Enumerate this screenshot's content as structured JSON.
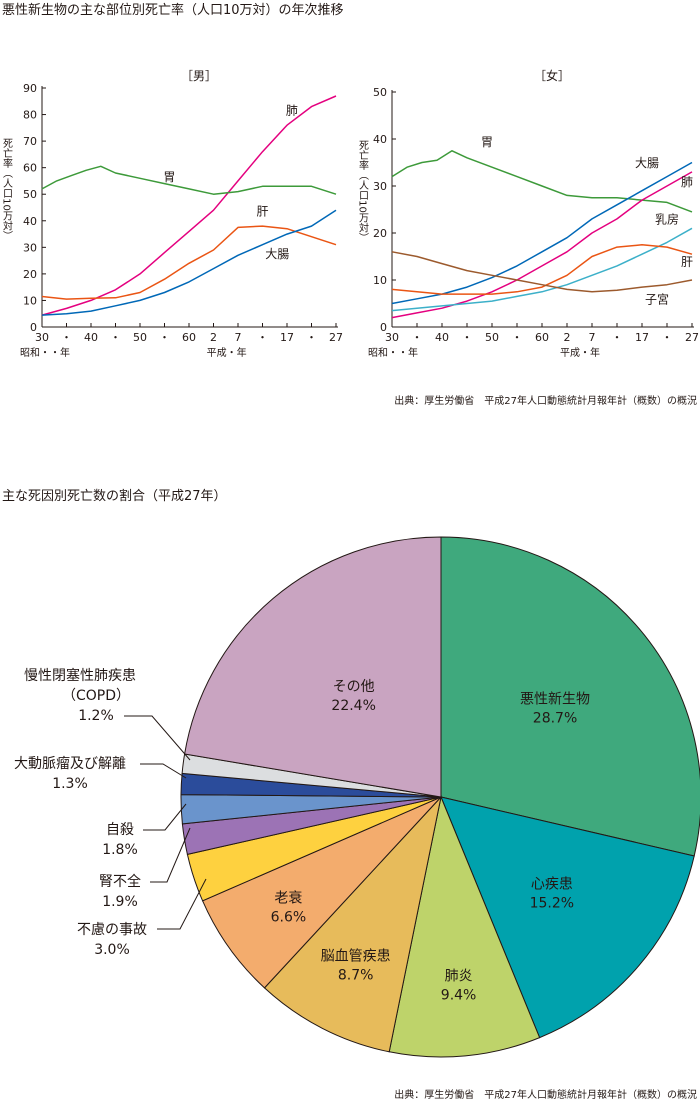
{
  "section1": {
    "title": "悪性新生物の主な部位別死亡率（人口10万対）の年次推移",
    "source": "出典：厚生労働省　平成27年人口動態統計月報年計（概数）の概況"
  },
  "section2": {
    "title": "主な死因別死亡数の割合（平成27年）",
    "source": "出典：厚生労働省　平成27年人口動態統計月報年計（概数）の概況"
  },
  "chart_data": [
    {
      "type": "line",
      "title": "［男］",
      "ylabel": "死亡率（人口10万対）",
      "ylim": [
        0,
        90
      ],
      "yticks": [
        0,
        10,
        20,
        30,
        40,
        50,
        60,
        70,
        80,
        90
      ],
      "xlim": [
        1955,
        2015
      ],
      "xticks": [
        {
          "x": 1955,
          "label": "30"
        },
        {
          "x": 1960,
          "label": "・"
        },
        {
          "x": 1965,
          "label": "40"
        },
        {
          "x": 1970,
          "label": "・"
        },
        {
          "x": 1975,
          "label": "50"
        },
        {
          "x": 1980,
          "label": "・"
        },
        {
          "x": 1985,
          "label": "60"
        },
        {
          "x": 1990,
          "label": "2"
        },
        {
          "x": 1995,
          "label": "7"
        },
        {
          "x": 2000,
          "label": "・"
        },
        {
          "x": 2005,
          "label": "17"
        },
        {
          "x": 2010,
          "label": "・"
        },
        {
          "x": 2015,
          "label": "27"
        }
      ],
      "era_labels": {
        "showa": "昭和・・年",
        "heisei": "平成・年"
      },
      "series": [
        {
          "name": "肺",
          "color": "#e4007f",
          "x": [
            1955,
            1960,
            1965,
            1970,
            1975,
            1980,
            1985,
            1990,
            1995,
            2000,
            2005,
            2010,
            2015
          ],
          "values": [
            4.5,
            7,
            10,
            14,
            20,
            28,
            36,
            44,
            55,
            66,
            76,
            83,
            87
          ]
        },
        {
          "name": "胃",
          "color": "#3d9a3a",
          "x": [
            1955,
            1958,
            1961,
            1964,
            1967,
            1970,
            1975,
            1980,
            1985,
            1990,
            1995,
            2000,
            2005,
            2010,
            2015
          ],
          "values": [
            52,
            55,
            57,
            59,
            60.5,
            58,
            56,
            54,
            52,
            50,
            51,
            53,
            53,
            53,
            50
          ]
        },
        {
          "name": "肝",
          "color": "#ea5514",
          "x": [
            1955,
            1960,
            1965,
            1970,
            1975,
            1980,
            1985,
            1990,
            1995,
            2000,
            2005,
            2010,
            2015
          ],
          "values": [
            11.5,
            10.5,
            10.8,
            11,
            13,
            18,
            24,
            29,
            37.5,
            38,
            37,
            34,
            31
          ]
        },
        {
          "name": "大腸",
          "color": "#0068b7",
          "x": [
            1955,
            1960,
            1965,
            1970,
            1975,
            1980,
            1985,
            1990,
            1995,
            2000,
            2005,
            2010,
            2015
          ],
          "values": [
            4.5,
            5,
            6,
            8,
            10,
            13,
            17,
            22,
            27,
            31,
            35,
            38,
            44
          ]
        }
      ]
    },
    {
      "type": "line",
      "title": "［女］",
      "ylabel": "死亡率（人口10万対）",
      "ylim": [
        0,
        50
      ],
      "yticks": [
        0,
        10,
        20,
        30,
        40,
        50
      ],
      "xlim": [
        1955,
        2015
      ],
      "xticks": [
        {
          "x": 1955,
          "label": "30"
        },
        {
          "x": 1960,
          "label": "・"
        },
        {
          "x": 1965,
          "label": "40"
        },
        {
          "x": 1970,
          "label": "・"
        },
        {
          "x": 1975,
          "label": "50"
        },
        {
          "x": 1980,
          "label": "・"
        },
        {
          "x": 1985,
          "label": "60"
        },
        {
          "x": 1990,
          "label": "2"
        },
        {
          "x": 1995,
          "label": "7"
        },
        {
          "x": 2000,
          "label": "・"
        },
        {
          "x": 2005,
          "label": "17"
        },
        {
          "x": 2010,
          "label": "・"
        },
        {
          "x": 2015,
          "label": "27"
        }
      ],
      "era_labels": {
        "showa": "昭和・・年",
        "heisei": "平成・年"
      },
      "series": [
        {
          "name": "胃",
          "color": "#3d9a3a",
          "x": [
            1955,
            1958,
            1961,
            1964,
            1967,
            1970,
            1975,
            1980,
            1985,
            1990,
            1995,
            2000,
            2005,
            2010,
            2015
          ],
          "values": [
            32,
            34,
            35,
            35.5,
            37.5,
            36,
            34,
            32,
            30,
            28,
            27.5,
            27.5,
            27,
            26.5,
            24.5
          ]
        },
        {
          "name": "大腸",
          "color": "#0068b7",
          "x": [
            1955,
            1960,
            1965,
            1970,
            1975,
            1980,
            1985,
            1990,
            1995,
            2000,
            2005,
            2010,
            2015
          ],
          "values": [
            5,
            6,
            7,
            8.5,
            10.5,
            13,
            16,
            19,
            23,
            26,
            29,
            32,
            35
          ]
        },
        {
          "name": "肺",
          "color": "#e4007f",
          "x": [
            1955,
            1960,
            1965,
            1970,
            1975,
            1980,
            1985,
            1990,
            1995,
            2000,
            2005,
            2010,
            2015
          ],
          "values": [
            2,
            3,
            4,
            5.5,
            7.5,
            10,
            13,
            16,
            20,
            23,
            27,
            30,
            33
          ]
        },
        {
          "name": "乳房",
          "color": "#3cb0c9",
          "x": [
            1955,
            1960,
            1965,
            1970,
            1975,
            1980,
            1985,
            1990,
            1995,
            2000,
            2005,
            2010,
            2015
          ],
          "values": [
            3.5,
            4,
            4.5,
            5,
            5.5,
            6.5,
            7.5,
            9,
            11,
            13,
            15.5,
            18,
            21
          ]
        },
        {
          "name": "肝",
          "color": "#ea5514",
          "x": [
            1955,
            1960,
            1965,
            1970,
            1975,
            1980,
            1985,
            1990,
            1995,
            2000,
            2005,
            2010,
            2015
          ],
          "values": [
            8,
            7.5,
            7,
            7,
            7,
            7.5,
            8.5,
            11,
            15,
            17,
            17.5,
            17,
            15.5
          ]
        },
        {
          "name": "子宮",
          "color": "#9c5a2d",
          "x": [
            1955,
            1960,
            1965,
            1970,
            1975,
            1980,
            1985,
            1990,
            1995,
            2000,
            2005,
            2010,
            2015
          ],
          "values": [
            16,
            15,
            13.5,
            12,
            11,
            10,
            9,
            8,
            7.5,
            7.8,
            8.5,
            9,
            10
          ]
        }
      ]
    },
    {
      "type": "pie",
      "title": "",
      "start": "top, clockwise",
      "slices": [
        {
          "label": "悪性新生物",
          "value": 28.7,
          "display": "28.7%",
          "color": "#3fa97d",
          "text": "white"
        },
        {
          "label": "心疾患",
          "value": 15.2,
          "display": "15.2%",
          "color": "#00a2ad",
          "text": "white"
        },
        {
          "label": "肺炎",
          "value": 9.4,
          "display": "9.4%",
          "color": "#bed36a",
          "text": "dark"
        },
        {
          "label": "脳血管疾患",
          "value": 8.7,
          "display": "8.7%",
          "color": "#e7bb5b",
          "text": "dark"
        },
        {
          "label": "老衰",
          "value": 6.6,
          "display": "6.6%",
          "color": "#f3ac6d",
          "text": "dark"
        },
        {
          "label": "不慮の事故",
          "value": 3.0,
          "display": "3.0%",
          "color": "#fed13f",
          "text": "dark"
        },
        {
          "label": "腎不全",
          "value": 1.9,
          "display": "1.9%",
          "color": "#9c73b5",
          "text": "dark"
        },
        {
          "label": "自殺",
          "value": 1.8,
          "display": "1.8%",
          "color": "#6a94cc",
          "text": "dark"
        },
        {
          "label": "大動脈瘤及び解離",
          "value": 1.3,
          "display": "1.3%",
          "color": "#2b4c9b",
          "text": "dark"
        },
        {
          "label": "慢性閉塞性肺疾患（COPD）",
          "value": 1.2,
          "display": "1.2%",
          "color": "#dcdee0",
          "text": "dark"
        },
        {
          "label": "その他",
          "value": 22.4,
          "display": "22.4%",
          "color": "#c9a4c1",
          "text": "dark"
        }
      ]
    }
  ]
}
